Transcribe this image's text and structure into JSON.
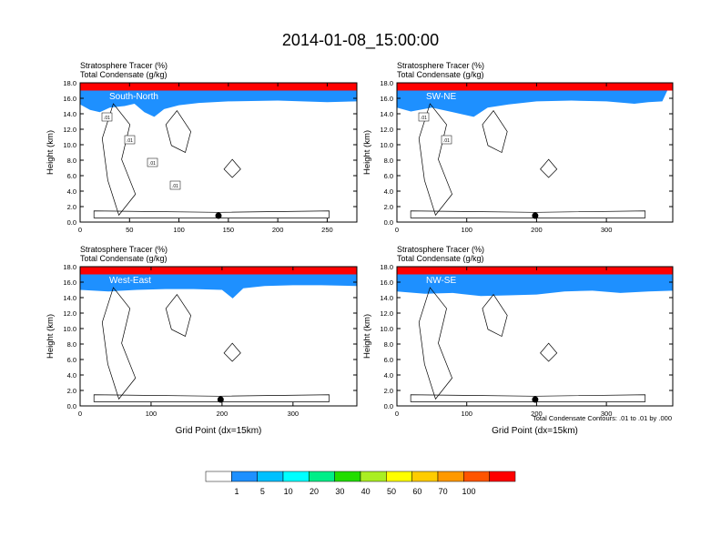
{
  "figure": {
    "title": "2014-01-08_15:00:00",
    "footnote": "Total Condensate Contours: .01 to .01 by .000"
  },
  "colorbar": {
    "labels": [
      "1",
      "5",
      "10",
      "20",
      "30",
      "40",
      "50",
      "60",
      "70",
      "100"
    ],
    "colors": [
      "#ffffff",
      "#1e90ff",
      "#00c0ff",
      "#00ffff",
      "#00ee88",
      "#22dd00",
      "#aaee22",
      "#ffff00",
      "#ffcc00",
      "#ff9900",
      "#ff5500",
      "#ff0000"
    ]
  },
  "chart_data": [
    {
      "type": "heatmap",
      "label": "South-North",
      "title_line1": "Stratosphere Tracer   (%)",
      "title_line2": "Total Condensate   (g/kg)",
      "xlabel": "",
      "ylabel": "Height (km)",
      "xlim": [
        0,
        280
      ],
      "ylim": [
        0,
        18
      ],
      "xticks": [
        "0",
        "50",
        "100",
        "150",
        "200",
        "250"
      ],
      "xtick_values": [
        0,
        50,
        100,
        150,
        200,
        250
      ],
      "yticks": [
        "0.0",
        "2.0",
        "4.0",
        "6.0",
        "8.0",
        "10.0",
        "12.0",
        "14.0",
        "16.0",
        "18.0"
      ],
      "tracer_base_km": [
        [
          0,
          15.2
        ],
        [
          10,
          14.5
        ],
        [
          20,
          14.2
        ],
        [
          30,
          14.8
        ],
        [
          45,
          15.0
        ],
        [
          55,
          15.3
        ],
        [
          65,
          14.2
        ],
        [
          75,
          13.6
        ],
        [
          85,
          14.6
        ],
        [
          100,
          15.1
        ],
        [
          120,
          15.4
        ],
        [
          150,
          15.6
        ],
        [
          200,
          15.7
        ],
        [
          250,
          15.5
        ],
        [
          280,
          15.6
        ]
      ],
      "marker_x": 140,
      "contour_labels": [
        ".01",
        ".01",
        ".01",
        ".01"
      ]
    },
    {
      "type": "heatmap",
      "label": "SW-NE",
      "title_line1": "Stratosphere Tracer   (%)",
      "title_line2": "Total Condensate   (g/kg)",
      "xlabel": "",
      "ylabel": "Height (km)",
      "xlim": [
        0,
        395
      ],
      "ylim": [
        0,
        18
      ],
      "xticks": [
        "0",
        "100",
        "200",
        "300"
      ],
      "xtick_values": [
        0,
        100,
        200,
        300
      ],
      "yticks": [
        "0.0",
        "2.0",
        "4.0",
        "6.0",
        "8.0",
        "10.0",
        "12.0",
        "14.0",
        "16.0",
        "18.0"
      ],
      "tracer_base_km": [
        [
          0,
          14.8
        ],
        [
          20,
          14.3
        ],
        [
          50,
          14.8
        ],
        [
          80,
          14.2
        ],
        [
          110,
          13.6
        ],
        [
          130,
          14.8
        ],
        [
          160,
          15.2
        ],
        [
          200,
          15.6
        ],
        [
          250,
          15.7
        ],
        [
          300,
          15.6
        ],
        [
          340,
          15.3
        ],
        [
          360,
          15.5
        ],
        [
          380,
          15.6
        ]
      ],
      "marker_x": 198,
      "contour_labels": [
        ".01",
        ".01"
      ]
    },
    {
      "type": "heatmap",
      "label": "West-East",
      "title_line1": "Stratosphere Tracer   (%)",
      "title_line2": "Total Condensate   (g/kg)",
      "xlabel": "Grid Point (dx=15km)",
      "ylabel": "Height (km)",
      "xlim": [
        0,
        390
      ],
      "ylim": [
        0,
        18
      ],
      "xticks": [
        "0",
        "100",
        "200",
        "300"
      ],
      "xtick_values": [
        0,
        100,
        200,
        300
      ],
      "yticks": [
        "0.0",
        "2.0",
        "4.0",
        "6.0",
        "8.0",
        "10.0",
        "12.0",
        "14.0",
        "16.0",
        "18.0"
      ],
      "tracer_base_km": [
        [
          0,
          15.0
        ],
        [
          40,
          14.8
        ],
        [
          80,
          15.0
        ],
        [
          120,
          15.1
        ],
        [
          160,
          15.1
        ],
        [
          200,
          15.0
        ],
        [
          215,
          13.9
        ],
        [
          230,
          15.2
        ],
        [
          260,
          15.5
        ],
        [
          300,
          15.6
        ],
        [
          340,
          15.6
        ],
        [
          390,
          15.5
        ]
      ],
      "marker_x": 198,
      "contour_labels": []
    },
    {
      "type": "heatmap",
      "label": "NW-SE",
      "title_line1": "Stratosphere Tracer   (%)",
      "title_line2": "Total Condensate   (g/kg)",
      "xlabel": "Grid Point (dx=15km)",
      "ylabel": "Height (km)",
      "xlim": [
        0,
        395
      ],
      "ylim": [
        0,
        18
      ],
      "xticks": [
        "0",
        "100",
        "200",
        "300"
      ],
      "xtick_values": [
        0,
        100,
        200,
        300
      ],
      "yticks": [
        "0.0",
        "2.0",
        "4.0",
        "6.0",
        "8.0",
        "10.0",
        "12.0",
        "14.0",
        "16.0",
        "18.0"
      ],
      "tracer_base_km": [
        [
          0,
          14.8
        ],
        [
          40,
          14.5
        ],
        [
          80,
          14.6
        ],
        [
          120,
          14.2
        ],
        [
          160,
          14.3
        ],
        [
          200,
          14.4
        ],
        [
          240,
          14.8
        ],
        [
          280,
          14.9
        ],
        [
          320,
          14.6
        ],
        [
          360,
          14.8
        ],
        [
          395,
          14.9
        ]
      ],
      "marker_x": 198,
      "contour_labels": []
    }
  ]
}
